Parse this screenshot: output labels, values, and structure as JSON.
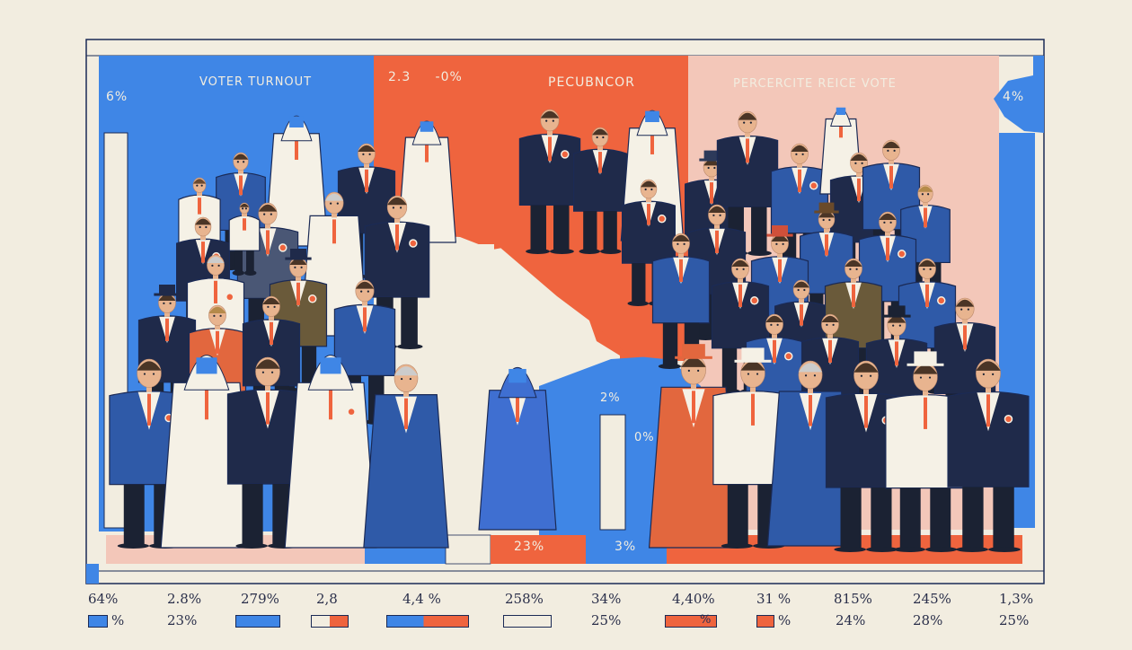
{
  "colors": {
    "blue": "#3f86e6",
    "orange": "#ef643e",
    "cream": "#f2ede0",
    "pink": "#f3c7b9",
    "navy": "#1b2a55"
  },
  "panels": {
    "left_title": "VOTER TURNOUT",
    "left_pct": "6%",
    "mid_title": "2.3     -0%",
    "orange_title": "PECUBNCOR",
    "right_title": "PERCERCITE REICE VOTE",
    "right_pct": "4%"
  },
  "bars": {
    "tall_bar_label": "2%",
    "short_bar_label": "0%",
    "bottom_orange_label": "23%",
    "bottom_blue_label": "3%"
  },
  "legend": {
    "top_values": [
      "64%",
      "2.8%",
      "279%",
      "2,8",
      "4,4 %",
      "258%",
      "34%",
      "4,40%",
      "31 %",
      "815%",
      "245%",
      "1,3%"
    ],
    "bottom_values": [
      "%",
      "23%",
      "25%",
      "%",
      "24%",
      "28%",
      "25%"
    ],
    "swatch_glyph": "%"
  }
}
